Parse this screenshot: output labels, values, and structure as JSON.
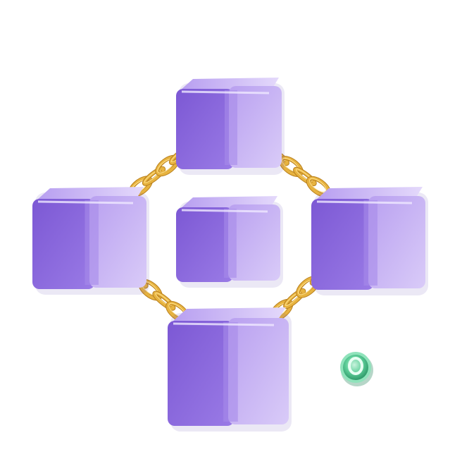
{
  "scene": {
    "background": "#ffffff",
    "cube_colors": {
      "front": "#8560d8",
      "side": "#a98ce8",
      "top": "#c9b6f4",
      "edge": "#6b46c8"
    },
    "chain_colors": {
      "link": "#e7b340",
      "link_highlight": "#ffe08a",
      "link_shadow": "#b9801e"
    },
    "token_colors": {
      "ring": "#6fd7a6",
      "face": "#3bb47f",
      "center": "#d8f7e8",
      "shadow": "#2d8a60"
    },
    "icons": [
      "cube-icon",
      "chain-icon",
      "coin-icon"
    ]
  }
}
